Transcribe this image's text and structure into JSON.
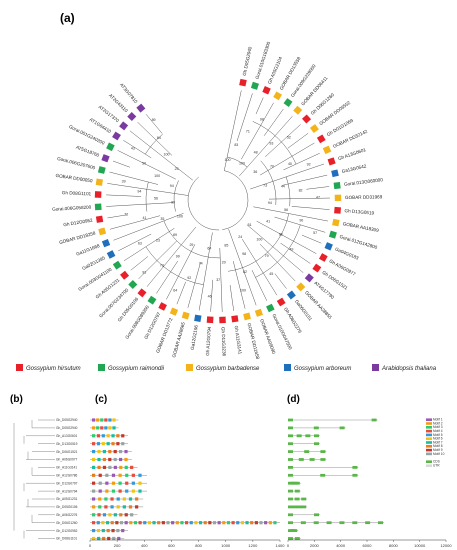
{
  "panels": {
    "a": "(a)",
    "b": "(b)",
    "c": "(c)",
    "d": "(d)"
  },
  "colors": {
    "hirsutum": "#e8202a",
    "raimondii": "#21a651",
    "barbadense": "#f2b41a",
    "arboreum": "#1f6fbd",
    "thaliana": "#7a3aa0"
  },
  "legend": [
    {
      "key": "hirsutum",
      "label": "Gossypium hirsutum"
    },
    {
      "key": "raimondii",
      "label": "Gossypium raimondii"
    },
    {
      "key": "barbadense",
      "label": "Gossypium barbadense"
    },
    {
      "key": "arboreum",
      "label": "Gossypium arboreum"
    },
    {
      "key": "thaliana",
      "label": "Arabidopsis thaliana"
    }
  ],
  "leaves": [
    {
      "label": "Gh D05G2940",
      "sp": "hirsutum"
    },
    {
      "label": "Gorai.010G183300",
      "sp": "raimondii"
    },
    {
      "label": "Gh A05G2104",
      "sp": "hirsutum"
    },
    {
      "label": "GOBAR DD13558",
      "sp": "barbadense"
    },
    {
      "label": "Gorai.009G239000",
      "sp": "raimondii"
    },
    {
      "label": "GOBAR DD06411",
      "sp": "barbadense"
    },
    {
      "label": "Gh D06G1260",
      "sp": "hirsutum"
    },
    {
      "label": "GOBAR DD06552",
      "sp": "barbadense"
    },
    {
      "label": "Gh D01G1069",
      "sp": "hirsutum"
    },
    {
      "label": "GOBAR DD32142",
      "sp": "barbadense"
    },
    {
      "label": "Gh A13G0601",
      "sp": "hirsutum"
    },
    {
      "label": "Ga13G0542",
      "sp": "arboreum"
    },
    {
      "label": "Gorai.013G060000",
      "sp": "raimondii"
    },
    {
      "label": "GOBAR DD31969",
      "sp": "barbadense"
    },
    {
      "label": "Gh D13G0519",
      "sp": "hirsutum"
    },
    {
      "label": "GOBAR AA18309",
      "sp": "barbadense"
    },
    {
      "label": "Gorai.012G142800",
      "sp": "raimondii"
    },
    {
      "label": "Ga04G0183",
      "sp": "arboreum"
    },
    {
      "label": "Gh A06G0977",
      "sp": "hirsutum"
    },
    {
      "label": "Gh D06G1521",
      "sp": "hirsutum"
    },
    {
      "label": "AT4G17790",
      "sp": "thaliana"
    },
    {
      "label": "GOBAR AA28855",
      "sp": "barbadense"
    },
    {
      "label": "Ga06G0151",
      "sp": "arboreum"
    },
    {
      "label": "Gh A06G2276",
      "sp": "hirsutum"
    },
    {
      "label": "Gorai.010G047500",
      "sp": "raimondii"
    },
    {
      "label": "GOBAR AA09090",
      "sp": "barbadense"
    },
    {
      "label": "GOBAR DD11658",
      "sp": "barbadense"
    },
    {
      "label": "Gh A11G3141",
      "sp": "hirsutum"
    },
    {
      "label": "Gh D11G3236",
      "sp": "hirsutum"
    },
    {
      "label": "Gh A12G0794",
      "sp": "hirsutum"
    },
    {
      "label": "Ga12G2196",
      "sp": "arboreum"
    },
    {
      "label": "GOBAR AA28665",
      "sp": "barbadense"
    },
    {
      "label": "GOBAR DD13772",
      "sp": "barbadense"
    },
    {
      "label": "Gh D12G0797",
      "sp": "hirsutum"
    },
    {
      "label": "Gorai.008G089200",
      "sp": "raimondii"
    },
    {
      "label": "Gh D05G0106",
      "sp": "hirsutum"
    },
    {
      "label": "Gorai.007G234700",
      "sp": "raimondii"
    },
    {
      "label": "Gh A05G1231",
      "sp": "hirsutum"
    },
    {
      "label": "Gorai.003G041100",
      "sp": "raimondii"
    },
    {
      "label": "Ga02G1395",
      "sp": "arboreum"
    },
    {
      "label": "Ga11G1668",
      "sp": "arboreum"
    },
    {
      "label": "GOBAR DD18258",
      "sp": "barbadense"
    },
    {
      "label": "Gh D12G0952",
      "sp": "hirsutum"
    },
    {
      "label": "Gorai.006G058200",
      "sp": "raimondii"
    },
    {
      "label": "Gh D08G1101",
      "sp": "hirsutum"
    },
    {
      "label": "GOBAR DD00050",
      "sp": "barbadense"
    },
    {
      "label": "Gorai.006G207600",
      "sp": "raimondii"
    },
    {
      "label": "AT5G18760",
      "sp": "thaliana"
    },
    {
      "label": "Gorai.001G240200",
      "sp": "raimondii"
    },
    {
      "label": "AT1G64410",
      "sp": "thaliana"
    },
    {
      "label": "AT2G17370",
      "sp": "thaliana"
    },
    {
      "label": "AT2G43110",
      "sp": "thaliana"
    },
    {
      "label": "AT3G07810",
      "sp": "thaliana"
    }
  ],
  "bootstraps": [
    "100",
    "83",
    "71",
    "98",
    "100",
    "48",
    "93",
    "52",
    "36",
    "70",
    "40",
    "92",
    "73",
    "44",
    "82",
    "47",
    "94",
    "56",
    "90",
    "57",
    "41",
    "98",
    "49",
    "51",
    "100",
    "79",
    "45",
    "24",
    "98",
    "82",
    "100",
    "85",
    "20",
    "37",
    "46",
    "64",
    "74",
    "92",
    "64",
    "29",
    "99",
    "73",
    "93",
    "89",
    "23",
    "63",
    "100",
    "35",
    "41",
    "72",
    "90",
    "56",
    "94",
    "39",
    "94",
    "100",
    "50",
    "43",
    "25",
    "100",
    "84",
    "89"
  ],
  "tree_b_labels": [
    "Gh_D05G2940",
    "Gh_D05G2940",
    "Gh_A13G0601",
    "Gh_D13G0519",
    "Gh_D06G1521",
    "Gh_A06G0977",
    "Gh_A11G3141",
    "Gh_A12G0786",
    "Gh_D12G0797",
    "Gh_A12G0794",
    "Gh_A05G1231",
    "Gh_D05G0106",
    "Gh_A06G2276",
    "Gh_D06G1260",
    "Gh_D12G0952",
    "Gh_D08G1101"
  ],
  "axis_c": [
    "0",
    "200",
    "400",
    "600",
    "800",
    "1000",
    "1200",
    "1400"
  ],
  "axis_d": [
    "0",
    "2000",
    "4000",
    "6000",
    "8000",
    "10000",
    "12000"
  ],
  "motif_legend": [
    "Motif 1",
    "Motif 2",
    "Motif 3",
    "Motif 4",
    "Motif 5",
    "Motif 6",
    "Motif 7",
    "Motif 8",
    "Motif 9",
    "Motif 10"
  ],
  "gene_legend": [
    "CDS",
    "UTR"
  ]
}
